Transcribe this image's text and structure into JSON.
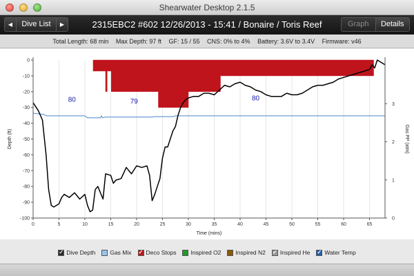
{
  "window": {
    "title": "Shearwater Desktop 2.1.5"
  },
  "toolbar": {
    "back_icon": "left-arrow-icon",
    "forward_icon": "right-arrow-icon",
    "dive_list_label": "Dive List",
    "dive_title": "2315EBC2 #602 12/26/2013 - 15:41  / Bonaire / Toris Reef",
    "graph_label": "Graph",
    "details_label": "Details"
  },
  "summary": {
    "total_length": "Total Length: 68 min",
    "max_depth": "Max Depth: 97 ft",
    "gf": "GF: 15 / 55",
    "cns": "CNS: 0% to 4%",
    "battery": "Battery: 3.6V to 3.4V",
    "firmware": "Firmware: v46"
  },
  "chart_data": {
    "type": "line",
    "xlabel": "Time (mins)",
    "ylabel_left": "Depth (ft)",
    "ylabel_right": "Gas PP (atm)",
    "xlim": [
      0,
      68
    ],
    "x_ticks": [
      "0",
      "5",
      "10",
      "15",
      "20",
      "25",
      "30",
      "35",
      "40",
      "45",
      "50",
      "55",
      "60",
      "65"
    ],
    "ylim_left": [
      -100,
      0
    ],
    "y_ticks_left": [
      "0",
      "-10",
      "-20",
      "-30",
      "-40",
      "-50",
      "-60",
      "-70",
      "-80",
      "-90",
      "-100"
    ],
    "ylim_right": [
      0,
      4
    ],
    "y_ticks_right": [
      "0",
      "1",
      "2",
      "3"
    ],
    "grid": "vertical",
    "series": [
      {
        "name": "Dive Depth",
        "color": "#000000",
        "x": [
          0,
          1,
          1.8,
          2.5,
          3,
          3.5,
          4,
          5,
          5.5,
          6,
          7,
          8,
          8.5,
          9,
          10,
          10.5,
          11,
          11.5,
          12,
          12.5,
          13,
          13.5,
          14,
          15,
          15.5,
          16,
          17,
          18,
          19,
          20,
          21,
          22,
          22.5,
          23,
          23.5,
          24,
          24.5,
          25,
          25.5,
          26,
          27,
          27.5,
          28,
          28.5,
          29,
          29.5,
          30,
          31,
          32,
          33,
          34,
          35,
          36,
          37,
          38,
          39,
          40,
          41,
          42,
          43,
          44,
          45,
          46,
          47,
          48,
          49,
          50,
          51,
          52,
          53,
          54,
          55,
          56,
          57,
          58,
          59,
          60,
          61,
          62,
          63,
          64,
          65,
          65.5,
          66,
          66.5,
          67,
          67.5,
          68
        ],
        "y": [
          -27,
          -32,
          -38,
          -60,
          -82,
          -92,
          -93,
          -91,
          -87,
          -85,
          -87,
          -84,
          -86,
          -88,
          -85,
          -92,
          -96,
          -95,
          -82,
          -80,
          -84,
          -88,
          -72,
          -73,
          -78,
          -76,
          -75,
          -68,
          -72,
          -67,
          -68,
          -67,
          -73,
          -89,
          -85,
          -80,
          -75,
          -62,
          -55,
          -55,
          -45,
          -42,
          -35,
          -30,
          -27,
          -25,
          -24,
          -23,
          -23,
          -21,
          -21,
          -22,
          -19,
          -16,
          -17,
          -15,
          -14,
          -16,
          -17,
          -19,
          -20,
          -22,
          -23,
          -23,
          -23,
          -21,
          -22,
          -22,
          -21,
          -19,
          -17,
          -16,
          -16,
          -15,
          -14,
          -12,
          -11,
          -10,
          -9,
          -8,
          -7,
          -6,
          -3,
          -5,
          0,
          -1,
          -2,
          -3
        ],
        "annotations": []
      },
      {
        "name": "Water Temp",
        "color": "#4a86c8",
        "x": [
          0,
          2,
          2.6,
          10,
          10.5,
          13,
          13.2,
          13.4,
          14,
          23,
          23.5,
          27,
          27.5,
          68
        ],
        "y": [
          2.75,
          2.72,
          2.68,
          2.68,
          2.63,
          2.63,
          2.68,
          2.63,
          2.65,
          2.65,
          2.66,
          2.66,
          2.68,
          2.68
        ]
      },
      {
        "name": "Deco Stops",
        "color": "#c0141c",
        "x": [
          11.6,
          11.6,
          14,
          14,
          14.3,
          14.3,
          15.1,
          15.1,
          24.2,
          24.2,
          30,
          30,
          36.2,
          36.2,
          65.8,
          65.8
        ],
        "y": [
          0,
          -7,
          -7,
          -20,
          -20,
          -7,
          -7,
          -20,
          -20,
          -30,
          -30,
          -20,
          -20,
          -10,
          -10,
          0
        ]
      }
    ],
    "temperature_labels": [
      {
        "x": 7.5,
        "y": -26.5,
        "text": "80"
      },
      {
        "x": 19.5,
        "y": -27.5,
        "text": "79"
      },
      {
        "x": 43,
        "y": -25.5,
        "text": "80"
      }
    ]
  },
  "legend": [
    {
      "name": "legend-dive-depth",
      "label": "Dive Depth",
      "checked": true,
      "color": "#2a2a2a"
    },
    {
      "name": "legend-gas-mix",
      "label": "Gas Mix",
      "checked": false,
      "color": "#9ac4ec"
    },
    {
      "name": "legend-deco-stops",
      "label": "Deco Stops",
      "checked": true,
      "color": "#c0141c"
    },
    {
      "name": "legend-inspired-o2",
      "label": "Inspired O2",
      "checked": false,
      "color": "#1f9a2a"
    },
    {
      "name": "legend-inspired-n2",
      "label": "Inspired N2",
      "checked": false,
      "color": "#8a5a0a"
    },
    {
      "name": "legend-inspired-he",
      "label": "Inspired He",
      "checked": true,
      "color": "#9a9a9a"
    },
    {
      "name": "legend-water-temp",
      "label": "Water Temp",
      "checked": true,
      "color": "#1f5fb0"
    }
  ]
}
